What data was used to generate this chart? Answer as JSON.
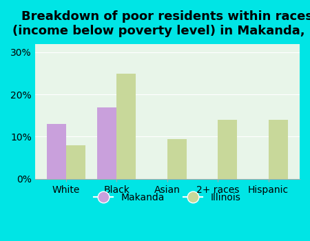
{
  "title": "Breakdown of poor residents within races\n(income below poverty level) in Makanda, IL",
  "categories": [
    "White",
    "Black",
    "Asian",
    "2+ races",
    "Hispanic"
  ],
  "makanda_values": [
    13.0,
    17.0,
    0,
    0,
    0
  ],
  "illinois_values": [
    8.0,
    25.0,
    9.5,
    14.0,
    14.0
  ],
  "makanda_color": "#c9a0dc",
  "illinois_color": "#c8d89a",
  "bg_outer": "#00e5e5",
  "bg_plot": "#e8f5e9",
  "yticks": [
    0,
    10,
    20,
    30
  ],
  "ylim": [
    0,
    32
  ],
  "bar_width": 0.38,
  "title_fontsize": 13,
  "legend_labels": [
    "Makanda",
    "Illinois"
  ]
}
